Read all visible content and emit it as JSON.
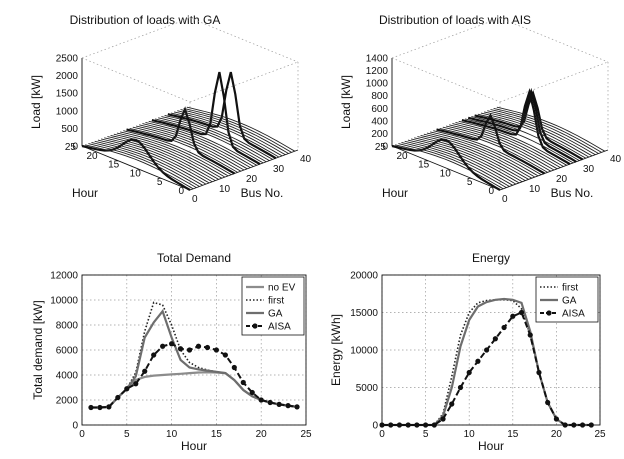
{
  "chart_data": [
    {
      "type": "surface3d",
      "title": "Distribution of loads with GA",
      "xlabel": "Hour",
      "ylabel": "Bus No.",
      "zlabel": "Load [kW]",
      "x_ticks": [
        "0",
        "5",
        "10",
        "15",
        "20",
        "25"
      ],
      "y_ticks": [
        "0",
        "10",
        "20",
        "30",
        "40"
      ],
      "z_ticks": [
        "0",
        "500",
        "1000",
        "1500",
        "2000",
        "2500"
      ],
      "zlim": [
        0,
        2500
      ]
    },
    {
      "type": "surface3d",
      "title": "Distribution of loads with AIS",
      "xlabel": "Hour",
      "ylabel": "Bus No.",
      "zlabel": "Load [kW]",
      "x_ticks": [
        "0",
        "5",
        "10",
        "15",
        "20",
        "25"
      ],
      "y_ticks": [
        "0",
        "10",
        "20",
        "30",
        "40"
      ],
      "z_ticks": [
        "0",
        "200",
        "400",
        "600",
        "800",
        "1000",
        "1200",
        "1400"
      ],
      "zlim": [
        0,
        1400
      ]
    },
    {
      "type": "line",
      "title": "Total Demand",
      "xlabel": "Hour",
      "ylabel": "Total demand [kW]",
      "xlim": [
        0,
        25
      ],
      "ylim": [
        0,
        12000
      ],
      "x_ticks": [
        0,
        5,
        10,
        15,
        20,
        25
      ],
      "y_ticks": [
        0,
        2000,
        4000,
        6000,
        8000,
        10000,
        12000
      ],
      "legend_position": "top-right",
      "series": [
        {
          "name": "no EV",
          "color": "#8c8c8c",
          "style": "solid",
          "x": [
            1,
            2,
            3,
            4,
            5,
            6,
            7,
            8,
            9,
            10,
            11,
            12,
            13,
            14,
            15,
            16,
            17,
            18,
            19,
            20,
            21,
            22,
            23,
            24
          ],
          "y": [
            1400,
            1400,
            1450,
            2200,
            2900,
            3600,
            3850,
            3950,
            4000,
            4050,
            4100,
            4150,
            4200,
            4220,
            4200,
            4150,
            3600,
            2800,
            2300,
            2000,
            1800,
            1650,
            1550,
            1450
          ]
        },
        {
          "name": "first",
          "color": "#222222",
          "style": "dotted",
          "x": [
            1,
            2,
            3,
            4,
            5,
            6,
            7,
            8,
            9,
            10,
            11,
            12,
            13,
            14,
            15,
            16,
            17,
            18,
            19,
            20,
            21,
            22,
            23,
            24
          ],
          "y": [
            1400,
            1400,
            1450,
            2200,
            2900,
            4200,
            7500,
            9800,
            9600,
            8000,
            6000,
            5000,
            4600,
            4400,
            4250,
            4150,
            3600,
            2800,
            2300,
            2000,
            1800,
            1650,
            1550,
            1450
          ]
        },
        {
          "name": "GA",
          "color": "#6e6e6e",
          "style": "solid",
          "x": [
            1,
            2,
            3,
            4,
            5,
            6,
            7,
            8,
            9,
            10,
            11,
            12,
            13,
            14,
            15,
            16,
            17,
            18,
            19,
            20,
            21,
            22,
            23,
            24
          ],
          "y": [
            1400,
            1400,
            1450,
            2200,
            2900,
            3900,
            7000,
            8200,
            9100,
            7000,
            5200,
            4600,
            4450,
            4350,
            4250,
            4150,
            3600,
            2800,
            2300,
            2000,
            1800,
            1650,
            1550,
            1450
          ]
        },
        {
          "name": "AISA",
          "color": "#111111",
          "style": "dashdot-marker",
          "x": [
            1,
            2,
            3,
            4,
            5,
            6,
            7,
            8,
            9,
            10,
            11,
            12,
            13,
            14,
            15,
            16,
            17,
            18,
            19,
            20,
            21,
            22,
            23,
            24
          ],
          "y": [
            1400,
            1400,
            1450,
            2200,
            2900,
            3300,
            4300,
            5600,
            6300,
            6500,
            6100,
            6000,
            6300,
            6200,
            6000,
            5600,
            4600,
            3400,
            2600,
            2000,
            1800,
            1650,
            1550,
            1450
          ]
        }
      ]
    },
    {
      "type": "line",
      "title": "Energy",
      "xlabel": "Hour",
      "ylabel": "Energy [kWh]",
      "xlim": [
        0,
        25
      ],
      "ylim": [
        0,
        20000
      ],
      "x_ticks": [
        0,
        5,
        10,
        15,
        20,
        25
      ],
      "y_ticks": [
        0,
        5000,
        10000,
        15000,
        20000
      ],
      "legend_position": "top-right",
      "series": [
        {
          "name": "first",
          "color": "#222222",
          "style": "dotted",
          "x": [
            0,
            1,
            2,
            3,
            4,
            5,
            6,
            7,
            8,
            9,
            10,
            11,
            12,
            13,
            14,
            15,
            16,
            17,
            18,
            19,
            20,
            21,
            22,
            23,
            24
          ],
          "y": [
            0,
            0,
            0,
            0,
            0,
            0,
            0,
            1500,
            6500,
            12000,
            15000,
            16300,
            16600,
            16700,
            16700,
            16600,
            15500,
            12000,
            7000,
            3000,
            800,
            0,
            0,
            0,
            0
          ]
        },
        {
          "name": "GA",
          "color": "#6e6e6e",
          "style": "solid",
          "x": [
            0,
            1,
            2,
            3,
            4,
            5,
            6,
            7,
            8,
            9,
            10,
            11,
            12,
            13,
            14,
            15,
            16,
            17,
            18,
            19,
            20,
            21,
            22,
            23,
            24
          ],
          "y": [
            0,
            0,
            0,
            0,
            0,
            0,
            0,
            1200,
            5000,
            10500,
            14000,
            15800,
            16400,
            16700,
            16800,
            16700,
            16300,
            12500,
            7000,
            3000,
            800,
            0,
            0,
            0,
            0
          ]
        },
        {
          "name": "AISA",
          "color": "#111111",
          "style": "dashdot-marker",
          "x": [
            0,
            1,
            2,
            3,
            4,
            5,
            6,
            7,
            8,
            9,
            10,
            11,
            12,
            13,
            14,
            15,
            16,
            17,
            18,
            19,
            20,
            21,
            22,
            23,
            24
          ],
          "y": [
            0,
            0,
            0,
            0,
            0,
            0,
            0,
            800,
            2800,
            5000,
            7000,
            8500,
            10000,
            11500,
            13000,
            14500,
            15000,
            12000,
            7000,
            3000,
            800,
            0,
            0,
            0,
            0
          ]
        }
      ]
    }
  ]
}
